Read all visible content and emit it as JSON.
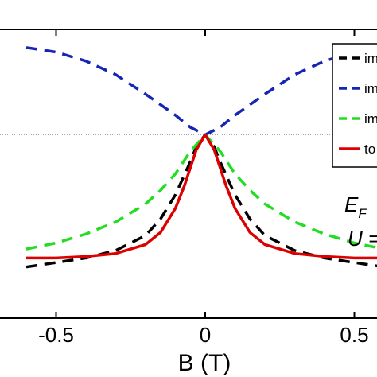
{
  "chart_data": {
    "type": "line",
    "xlabel": "B (T)",
    "ylabel": "",
    "xlim": [
      -0.6,
      0.6
    ],
    "ylim": [
      0,
      1
    ],
    "x_ticks": [
      -0.5,
      0,
      0.5
    ],
    "x_tick_labels": [
      "-0.5",
      "0",
      "0.5"
    ],
    "grid": false,
    "legend_position": "top-right",
    "reference_line": {
      "y": 0.61,
      "style": "dotted",
      "color": "#999999"
    },
    "annotations": [
      {
        "text": "E",
        "sub": "F"
      },
      {
        "text": "U ="
      }
    ],
    "series": [
      {
        "name": "im",
        "color": "#000000",
        "dash": "dashed",
        "x": [
          -0.6,
          -0.5,
          -0.4,
          -0.3,
          -0.2,
          -0.15,
          -0.1,
          -0.05,
          -0.03,
          0,
          0.03,
          0.05,
          0.1,
          0.15,
          0.2,
          0.3,
          0.4,
          0.5,
          0.6
        ],
        "y": [
          0.17,
          0.185,
          0.2,
          0.225,
          0.275,
          0.33,
          0.41,
          0.52,
          0.57,
          0.61,
          0.57,
          0.52,
          0.41,
          0.33,
          0.275,
          0.225,
          0.2,
          0.185,
          0.17
        ]
      },
      {
        "name": "im",
        "color": "#1526b5",
        "dash": "dashed",
        "x": [
          -0.6,
          -0.5,
          -0.4,
          -0.3,
          -0.2,
          -0.15,
          -0.1,
          -0.05,
          0,
          0.05,
          0.1,
          0.15,
          0.2,
          0.3,
          0.4,
          0.5,
          0.6
        ],
        "y": [
          0.9,
          0.885,
          0.855,
          0.81,
          0.745,
          0.71,
          0.675,
          0.635,
          0.61,
          0.635,
          0.675,
          0.71,
          0.745,
          0.81,
          0.855,
          0.885,
          0.9
        ]
      },
      {
        "name": "im",
        "color": "#22dd22",
        "dash": "dashed",
        "x": [
          -0.6,
          -0.5,
          -0.4,
          -0.3,
          -0.2,
          -0.15,
          -0.1,
          -0.05,
          0,
          0.05,
          0.1,
          0.15,
          0.2,
          0.3,
          0.4,
          0.5,
          0.6
        ],
        "y": [
          0.23,
          0.25,
          0.28,
          0.32,
          0.38,
          0.425,
          0.48,
          0.555,
          0.61,
          0.555,
          0.48,
          0.425,
          0.38,
          0.32,
          0.28,
          0.25,
          0.23
        ]
      },
      {
        "name": "to",
        "color": "#dd0000",
        "dash": "solid",
        "x": [
          -0.6,
          -0.5,
          -0.4,
          -0.3,
          -0.2,
          -0.15,
          -0.1,
          -0.07,
          -0.05,
          -0.03,
          0,
          0.03,
          0.05,
          0.07,
          0.1,
          0.15,
          0.2,
          0.3,
          0.4,
          0.5,
          0.6
        ],
        "y": [
          0.2,
          0.2,
          0.205,
          0.215,
          0.245,
          0.285,
          0.365,
          0.44,
          0.5,
          0.56,
          0.61,
          0.56,
          0.5,
          0.44,
          0.365,
          0.285,
          0.245,
          0.215,
          0.205,
          0.2,
          0.2
        ]
      }
    ]
  }
}
